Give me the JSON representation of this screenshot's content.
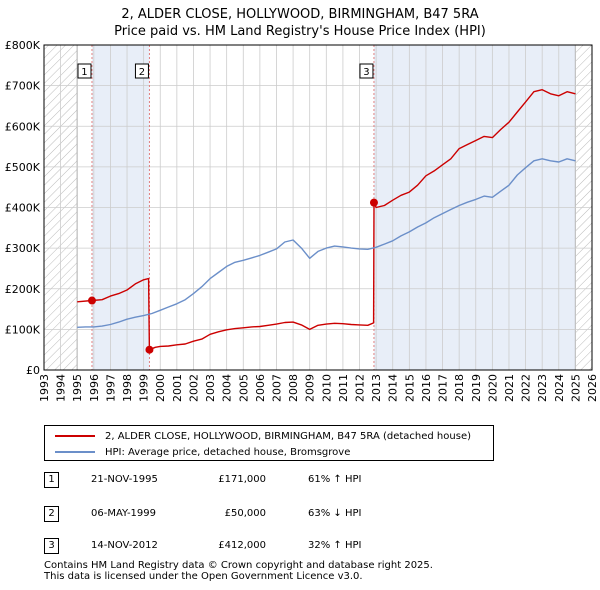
{
  "title_line1": "2, ALDER CLOSE, HOLLYWOOD, BIRMINGHAM, B47 5RA",
  "title_line2": "Price paid vs. HM Land Registry's House Price Index (HPI)",
  "colors": {
    "property": "#cc0000",
    "hpi": "#6b8fc9",
    "highlight": "#e8eef8",
    "hatch": "#bbbbbb",
    "vline": "#e08080",
    "grid": "#cccccc"
  },
  "legend": {
    "property_label": "2, ALDER CLOSE, HOLLYWOOD, BIRMINGHAM, B47 5RA (detached house)",
    "hpi_label": "HPI: Average price, detached house, Bromsgrove"
  },
  "sales": [
    {
      "num": "1",
      "date": "21-NOV-1995",
      "price": "£171,000",
      "hpi": "61% ↑ HPI"
    },
    {
      "num": "2",
      "date": "06-MAY-1999",
      "price": "£50,000",
      "hpi": "63% ↓ HPI"
    },
    {
      "num": "3",
      "date": "14-NOV-2012",
      "price": "£412,000",
      "hpi": "32% ↑ HPI"
    }
  ],
  "footer_line1": "Contains HM Land Registry data © Crown copyright and database right 2025.",
  "footer_line2": "This data is licensed under the Open Government Licence v3.0.",
  "chart_data": {
    "type": "line",
    "title": "2, ALDER CLOSE, HOLLYWOOD, BIRMINGHAM, B47 5RA",
    "subtitle": "Price paid vs. HM Land Registry's House Price Index (HPI)",
    "xlabel": "",
    "ylabel": "",
    "xlim": [
      1993,
      2026
    ],
    "ylim": [
      0,
      800000
    ],
    "x_ticks": [
      "1993",
      "1994",
      "1995",
      "1996",
      "1997",
      "1998",
      "1999",
      "2000",
      "2001",
      "2002",
      "2003",
      "2004",
      "2005",
      "2006",
      "2007",
      "2008",
      "2009",
      "2010",
      "2011",
      "2012",
      "2013",
      "2014",
      "2015",
      "2016",
      "2017",
      "2018",
      "2019",
      "2020",
      "2021",
      "2022",
      "2023",
      "2024",
      "2025",
      "2026"
    ],
    "y_ticks": [
      {
        "value": 0,
        "label": "£0"
      },
      {
        "value": 100000,
        "label": "£100K"
      },
      {
        "value": 200000,
        "label": "£200K"
      },
      {
        "value": 300000,
        "label": "£300K"
      },
      {
        "value": 400000,
        "label": "£400K"
      },
      {
        "value": 500000,
        "label": "£500K"
      },
      {
        "value": 600000,
        "label": "£600K"
      },
      {
        "value": 700000,
        "label": "£700K"
      },
      {
        "value": 800000,
        "label": "£800K"
      }
    ],
    "hatched_ranges": [
      [
        1993,
        1995
      ],
      [
        2025,
        2026
      ]
    ],
    "highlight_ranges": [
      [
        1995.89,
        1999.35
      ],
      [
        2012.87,
        2025
      ]
    ],
    "sale_markers": [
      {
        "label": "1",
        "x": 1995.89,
        "y": 171000
      },
      {
        "label": "2",
        "x": 1999.35,
        "y": 50000
      },
      {
        "label": "3",
        "x": 2012.87,
        "y": 412000
      }
    ],
    "series": [
      {
        "name": "2, ALDER CLOSE, HOLLYWOOD, BIRMINGHAM, B47 5RA (detached house)",
        "color": "#cc0000",
        "points": [
          [
            1995.0,
            168000
          ],
          [
            1995.89,
            171000
          ],
          [
            1996.5,
            173000
          ],
          [
            1997.0,
            182000
          ],
          [
            1997.5,
            188000
          ],
          [
            1998.0,
            197000
          ],
          [
            1998.5,
            212000
          ],
          [
            1999.0,
            222000
          ],
          [
            1999.3,
            225000
          ],
          [
            1999.35,
            50000
          ],
          [
            1999.7,
            56000
          ],
          [
            2000.0,
            58000
          ],
          [
            2000.5,
            59000
          ],
          [
            2001.0,
            62000
          ],
          [
            2001.5,
            64000
          ],
          [
            2002.0,
            71000
          ],
          [
            2002.5,
            76000
          ],
          [
            2003.0,
            88000
          ],
          [
            2003.5,
            94000
          ],
          [
            2004.0,
            99000
          ],
          [
            2004.5,
            102000
          ],
          [
            2005.0,
            104000
          ],
          [
            2005.5,
            106000
          ],
          [
            2006.0,
            107000
          ],
          [
            2006.5,
            110000
          ],
          [
            2007.0,
            113000
          ],
          [
            2007.5,
            117000
          ],
          [
            2008.0,
            118000
          ],
          [
            2008.5,
            111000
          ],
          [
            2009.0,
            100000
          ],
          [
            2009.5,
            110000
          ],
          [
            2010.0,
            113000
          ],
          [
            2010.5,
            115000
          ],
          [
            2011.0,
            114000
          ],
          [
            2011.5,
            112000
          ],
          [
            2012.0,
            111000
          ],
          [
            2012.5,
            110000
          ],
          [
            2012.85,
            116000
          ],
          [
            2012.87,
            412000
          ],
          [
            2013.0,
            400000
          ],
          [
            2013.5,
            405000
          ],
          [
            2014.0,
            418000
          ],
          [
            2014.5,
            430000
          ],
          [
            2015.0,
            438000
          ],
          [
            2015.5,
            455000
          ],
          [
            2016.0,
            478000
          ],
          [
            2016.5,
            490000
          ],
          [
            2017.0,
            505000
          ],
          [
            2017.5,
            520000
          ],
          [
            2018.0,
            545000
          ],
          [
            2018.5,
            555000
          ],
          [
            2019.0,
            565000
          ],
          [
            2019.5,
            575000
          ],
          [
            2020.0,
            572000
          ],
          [
            2020.5,
            592000
          ],
          [
            2021.0,
            610000
          ],
          [
            2021.5,
            635000
          ],
          [
            2022.0,
            660000
          ],
          [
            2022.5,
            685000
          ],
          [
            2023.0,
            690000
          ],
          [
            2023.5,
            680000
          ],
          [
            2024.0,
            675000
          ],
          [
            2024.5,
            685000
          ],
          [
            2025.0,
            680000
          ]
        ]
      },
      {
        "name": "HPI: Average price, detached house, Bromsgrove",
        "color": "#6b8fc9",
        "points": [
          [
            1995.0,
            105000
          ],
          [
            1995.5,
            106000
          ],
          [
            1996.0,
            106000
          ],
          [
            1996.5,
            108000
          ],
          [
            1997.0,
            112000
          ],
          [
            1997.5,
            118000
          ],
          [
            1998.0,
            125000
          ],
          [
            1998.5,
            130000
          ],
          [
            1999.0,
            134000
          ],
          [
            1999.5,
            139000
          ],
          [
            2000.0,
            147000
          ],
          [
            2000.5,
            155000
          ],
          [
            2001.0,
            163000
          ],
          [
            2001.5,
            173000
          ],
          [
            2002.0,
            188000
          ],
          [
            2002.5,
            205000
          ],
          [
            2003.0,
            225000
          ],
          [
            2003.5,
            240000
          ],
          [
            2004.0,
            255000
          ],
          [
            2004.5,
            265000
          ],
          [
            2005.0,
            270000
          ],
          [
            2005.5,
            276000
          ],
          [
            2006.0,
            282000
          ],
          [
            2006.5,
            290000
          ],
          [
            2007.0,
            298000
          ],
          [
            2007.5,
            315000
          ],
          [
            2008.0,
            320000
          ],
          [
            2008.5,
            300000
          ],
          [
            2009.0,
            275000
          ],
          [
            2009.5,
            292000
          ],
          [
            2010.0,
            300000
          ],
          [
            2010.5,
            305000
          ],
          [
            2011.0,
            303000
          ],
          [
            2011.5,
            300000
          ],
          [
            2012.0,
            298000
          ],
          [
            2012.5,
            297000
          ],
          [
            2013.0,
            302000
          ],
          [
            2013.5,
            310000
          ],
          [
            2014.0,
            318000
          ],
          [
            2014.5,
            330000
          ],
          [
            2015.0,
            340000
          ],
          [
            2015.5,
            352000
          ],
          [
            2016.0,
            362000
          ],
          [
            2016.5,
            375000
          ],
          [
            2017.0,
            385000
          ],
          [
            2017.5,
            395000
          ],
          [
            2018.0,
            405000
          ],
          [
            2018.5,
            413000
          ],
          [
            2019.0,
            420000
          ],
          [
            2019.5,
            428000
          ],
          [
            2020.0,
            425000
          ],
          [
            2020.5,
            440000
          ],
          [
            2021.0,
            455000
          ],
          [
            2021.5,
            480000
          ],
          [
            2022.0,
            498000
          ],
          [
            2022.5,
            515000
          ],
          [
            2023.0,
            520000
          ],
          [
            2023.5,
            515000
          ],
          [
            2024.0,
            512000
          ],
          [
            2024.5,
            520000
          ],
          [
            2025.0,
            515000
          ]
        ]
      }
    ]
  }
}
